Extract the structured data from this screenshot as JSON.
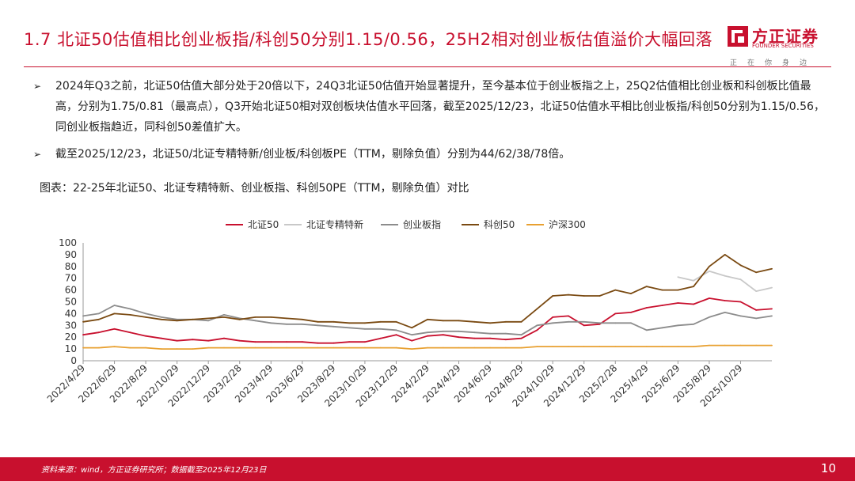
{
  "header": {
    "title": "1.7 北证50估值相比创业板指/科创50分别1.15/0.56，25H2相对创业板估值溢价大幅回落",
    "logo_name": "方正证券",
    "logo_en": "FOUNDER SECURITIES",
    "logo_slogan": "正在你身边",
    "brand_color": "#c8102e"
  },
  "bullets": [
    "2024年Q3之前，北证50估值大部分处于20倍以下，24Q3北证50估值开始显著提升，至今基本位于创业板指之上，25Q2估值相比创业板和科创板比值最高，分别为1.75/0.81（最高点），Q3开始北证50相对双创板块估值水平回落，截至2025/12/23，北证50估值水平相比创业板指/科创50分别为1.15/0.56，同创业板指趋近，同科创50差值扩大。",
    "截至2025/12/23，北证50/北证专精特新/创业板/科创板PE（TTM，剔除负值）分别为44/62/38/78倍。"
  ],
  "bullet_marker": "➢",
  "figure_caption": "图表：22-25年北证50、北证专精特新、创业板指、科创50PE（TTM，剔除负值）对比",
  "footer": {
    "source": "资料来源：wind，方正证券研究所；数据截至2025年12月23日",
    "page": "10"
  },
  "chart_data": {
    "type": "line",
    "x": [
      "2022/4/29",
      "2022/5/29",
      "2022/6/29",
      "2022/7/29",
      "2022/8/29",
      "2022/9/29",
      "2022/10/29",
      "2022/11/29",
      "2022/12/29",
      "2023/1/29",
      "2023/2/28",
      "2023/3/29",
      "2023/4/29",
      "2023/5/29",
      "2023/6/29",
      "2023/7/29",
      "2023/8/29",
      "2023/9/29",
      "2023/10/29",
      "2023/11/29",
      "2023/12/29",
      "2024/1/29",
      "2024/2/29",
      "2024/3/29",
      "2024/4/29",
      "2024/5/29",
      "2024/6/29",
      "2024/7/29",
      "2024/8/29",
      "2024/9/29",
      "2024/10/29",
      "2024/11/29",
      "2024/12/29",
      "2025/1/29",
      "2025/2/28",
      "2025/3/29",
      "2025/4/29",
      "2025/5/29",
      "2025/6/29",
      "2025/7/29",
      "2025/8/29",
      "2025/9/29",
      "2025/10/29",
      "2025/11/29",
      "2025/12/23"
    ],
    "x_tick_labels": [
      "2022/4/29",
      "2022/6/29",
      "2022/8/29",
      "2022/10/29",
      "2022/12/29",
      "2023/2/28",
      "2023/4/29",
      "2023/6/29",
      "2023/8/29",
      "2023/10/29",
      "2023/12/29",
      "2024/2/29",
      "2024/4/29",
      "2024/6/29",
      "2024/8/29",
      "2024/10/29",
      "2024/12/29",
      "2025/2/28",
      "2025/4/29",
      "2025/6/29",
      "2025/8/29",
      "2025/10/29"
    ],
    "ylim": [
      0,
      100
    ],
    "yticks": [
      0,
      10,
      20,
      30,
      40,
      50,
      60,
      70,
      80,
      90,
      100
    ],
    "legend_position": "top",
    "grid": false,
    "series": [
      {
        "name": "北证50",
        "color": "#c8102e",
        "values": [
          22,
          24,
          27,
          24,
          21,
          19,
          17,
          18,
          17,
          19,
          17,
          16,
          16,
          16,
          16,
          15,
          15,
          16,
          16,
          19,
          22,
          17,
          21,
          22,
          20,
          19,
          19,
          18,
          19,
          26,
          37,
          38,
          30,
          31,
          40,
          41,
          45,
          47,
          49,
          48,
          53,
          51,
          50,
          43,
          44
        ]
      },
      {
        "name": "北证专精特新",
        "color": "#c8c8c8",
        "values": [
          null,
          null,
          null,
          null,
          null,
          null,
          null,
          null,
          null,
          null,
          null,
          null,
          null,
          null,
          null,
          null,
          null,
          null,
          null,
          null,
          null,
          null,
          null,
          null,
          null,
          null,
          null,
          null,
          null,
          null,
          null,
          null,
          null,
          null,
          null,
          null,
          null,
          null,
          71,
          68,
          76,
          72,
          69,
          59,
          62
        ]
      },
      {
        "name": "创业板指",
        "color": "#8c8c8c",
        "values": [
          38,
          40,
          47,
          44,
          40,
          37,
          35,
          35,
          34,
          39,
          36,
          34,
          32,
          31,
          31,
          30,
          29,
          28,
          27,
          27,
          26,
          22,
          24,
          25,
          25,
          24,
          23,
          23,
          22,
          30,
          32,
          33,
          33,
          32,
          32,
          32,
          26,
          28,
          30,
          31,
          37,
          41,
          38,
          36,
          38
        ]
      },
      {
        "name": "科创50",
        "color": "#7a4a12",
        "values": [
          33,
          35,
          40,
          39,
          37,
          35,
          34,
          35,
          36,
          37,
          35,
          37,
          37,
          36,
          35,
          33,
          33,
          32,
          32,
          33,
          33,
          28,
          35,
          34,
          34,
          33,
          32,
          33,
          33,
          44,
          55,
          56,
          55,
          55,
          60,
          57,
          63,
          60,
          60,
          63,
          80,
          90,
          81,
          75,
          78
        ]
      },
      {
        "name": "沪深300",
        "color": "#e8a030",
        "values": [
          11,
          11,
          12,
          11,
          11,
          10,
          10,
          10,
          11,
          11,
          11,
          11,
          11,
          11,
          11,
          11,
          11,
          11,
          11,
          11,
          11,
          10,
          11,
          11,
          11,
          11,
          11,
          11,
          11,
          12,
          12,
          12,
          12,
          12,
          12,
          12,
          12,
          12,
          12,
          12,
          13,
          13,
          13,
          13,
          13
        ]
      }
    ]
  }
}
